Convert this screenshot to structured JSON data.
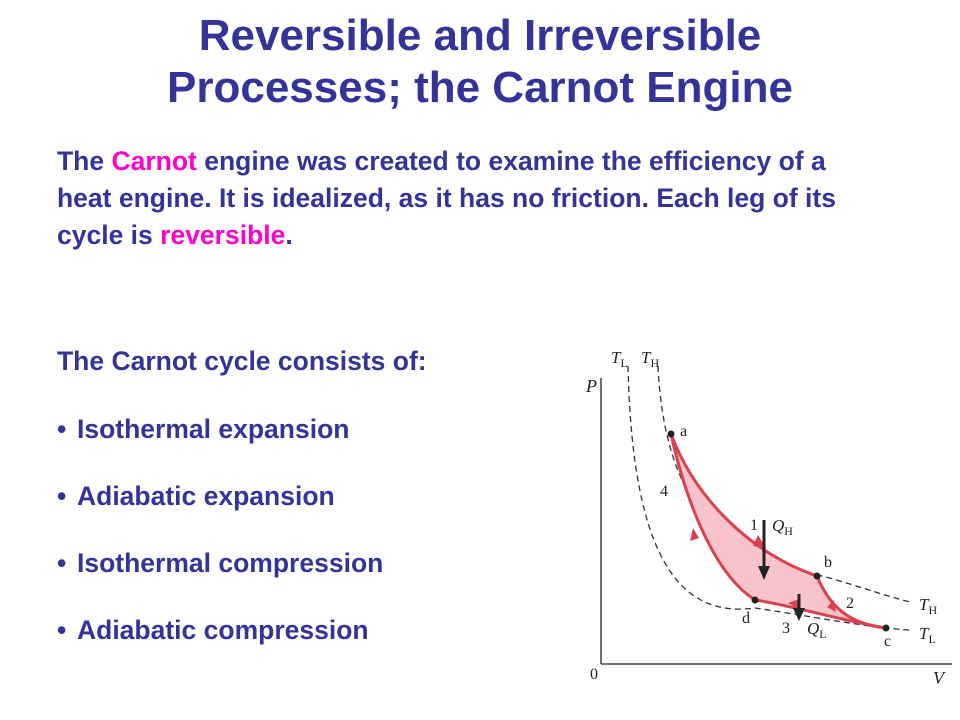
{
  "title": {
    "line1": "Reversible and Irreversible",
    "line2": "Processes; the Carnot Engine"
  },
  "intro": {
    "before": "The ",
    "carnot": "Carnot",
    "after": " engine was created to examine the efficiency of a heat engine. It is idealized, as it has no friction. Each leg of its cycle is ",
    "reversible": "reversible",
    "end": "."
  },
  "cycle_heading": "The Carnot cycle consists of:",
  "steps": [
    "Isothermal expansion",
    "Adiabatic expansion",
    "Isothermal compression",
    "Adiabatic compression"
  ],
  "bullet": "•",
  "diagram": {
    "axis_p": "P",
    "axis_v": "V",
    "origin": "0",
    "isotherm_label_low": "T",
    "isotherm_label_low_sub": "L",
    "isotherm_label_high": "T",
    "isotherm_label_high_sub": "H",
    "points": {
      "a": "a",
      "b": "b",
      "c": "c",
      "d": "d"
    },
    "legs": {
      "l1": "1",
      "l2": "2",
      "l3": "3",
      "l4": "4"
    },
    "qh": "Q",
    "qh_sub": "H",
    "ql": "Q",
    "ql_sub": "L",
    "colors": {
      "cycle_stroke": "#d9414f",
      "cycle_fill": "#f8c3cb",
      "isotherm": "#333333",
      "text": "#333399",
      "highlight": "#ff00cc"
    }
  }
}
